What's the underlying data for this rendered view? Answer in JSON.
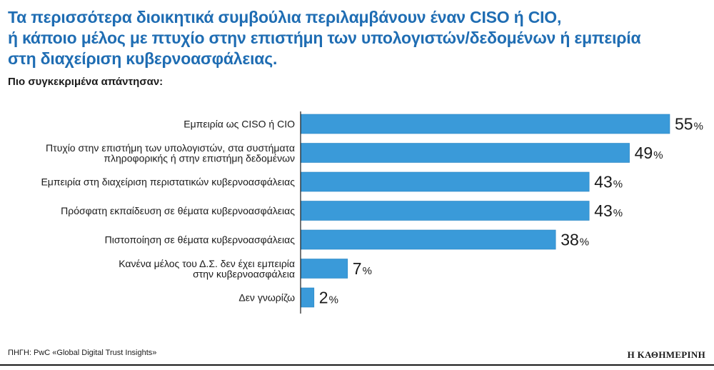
{
  "header": {
    "title_lines": [
      "Τα περισσότερα διοικητικά συμβούλια περιλαμβάνουν έναν CISO ή CIO,",
      "ή κάποιο μέλος με πτυχίο στην επιστήμη των υπολογιστών/δεδομένων ή εμπειρία",
      "στη διαχείριση κυβερνοασφάλειας."
    ],
    "subtitle": "Πιο συγκεκριμένα απάντησαν:"
  },
  "footer": {
    "source": "ΠΗΓΗ: PwC «Global Digital Trust Insights»",
    "brand": "Η ΚΑΘΗΜΕΡΙΝΗ"
  },
  "colors": {
    "bar": "#3a9ad9",
    "bar_stroke": "#2a86c4",
    "title": "#1f6db3",
    "axis": "#1a1a1a"
  },
  "chart_data": {
    "type": "bar",
    "orientation": "horizontal",
    "title": "Τα περισσότερα διοικητικά συμβούλια περιλαμβάνουν έναν CISO ή CIO, ή κάποιο μέλος με πτυχίο στην επιστήμη των υπολογιστών/δεδομένων ή εμπειρία στη διαχείριση κυβερνοασφάλειας.",
    "unit": "%",
    "xlim": [
      0,
      55
    ],
    "categories": [
      [
        "Εμπειρία ως CISO ή CIO"
      ],
      [
        "Πτυχίο στην επιστήμη των υπολογιστών, στα συστήματα",
        "πληροφορικής ή στην επιστήμη δεδομένων"
      ],
      [
        "Εμπειρία στη διαχείριση περιστατικών κυβερνοασφάλειας"
      ],
      [
        "Πρόσφατη εκπαίδευση σε θέματα κυβερνοασφάλειας"
      ],
      [
        "Πιστοποίηση σε θέματα κυβερνοασφάλειας"
      ],
      [
        "Κανένα μέλος του Δ.Σ. δεν έχει εμπειρία",
        "στην κυβερνοασφάλεια"
      ],
      [
        "Δεν γνωρίζω"
      ]
    ],
    "values": [
      55,
      49,
      43,
      43,
      38,
      7,
      2
    ]
  }
}
